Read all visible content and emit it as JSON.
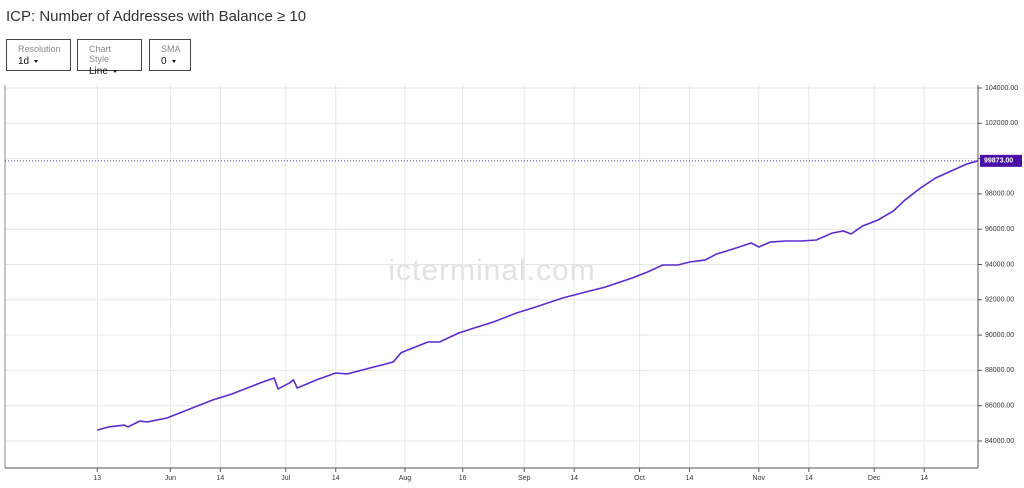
{
  "title": "ICP: Number of Addresses with Balance ≥ 10",
  "controls": [
    {
      "label": "Resolution",
      "value": "1d"
    },
    {
      "label": "Chart Style",
      "value": "Line"
    },
    {
      "label": "SMA",
      "value": "0"
    }
  ],
  "chart_data": {
    "type": "line",
    "watermark": "icterminal.com",
    "x": [
      "05-13",
      "05-16",
      "05-20",
      "05-21",
      "05-24",
      "05-26",
      "05-31",
      "06-04",
      "06-08",
      "06-12",
      "06-17",
      "06-21",
      "06-25",
      "06-28",
      "06-29",
      "07-02",
      "07-03",
      "07-04",
      "07-09",
      "07-14",
      "07-17",
      "07-23",
      "07-27",
      "07-29",
      "07-31",
      "08-03",
      "08-07",
      "08-10",
      "08-15",
      "08-19",
      "08-24",
      "08-30",
      "09-04",
      "09-11",
      "09-17",
      "09-22",
      "09-26",
      "09-29",
      "10-03",
      "10-07",
      "10-11",
      "10-14",
      "10-18",
      "10-21",
      "10-26",
      "10-30",
      "11-01",
      "11-04",
      "11-08",
      "11-12",
      "11-16",
      "11-20",
      "11-23",
      "11-25",
      "11-28",
      "12-02",
      "12-06",
      "12-09",
      "12-13",
      "12-17",
      "12-21",
      "12-25",
      "12-28"
    ],
    "series": [
      {
        "color": "#5a2bd0",
        "values": [
          84620,
          84800,
          84900,
          84800,
          85130,
          85080,
          85300,
          85640,
          85980,
          86320,
          86660,
          87000,
          87340,
          87570,
          86950,
          87290,
          87460,
          87000,
          87460,
          87850,
          87800,
          88140,
          88360,
          88480,
          89000,
          89270,
          89610,
          89610,
          90120,
          90400,
          90740,
          91250,
          91590,
          92100,
          92440,
          92720,
          93010,
          93230,
          93570,
          93970,
          93970,
          94140,
          94250,
          94590,
          94930,
          95220,
          94990,
          95270,
          95330,
          95330,
          95390,
          95780,
          95900,
          95730,
          96180,
          96520,
          97030,
          97650,
          98330,
          98900,
          99300,
          99690,
          99873
        ]
      }
    ],
    "current_value": {
      "value": 99873,
      "label": "99873.00"
    },
    "xlim": [
      "04-19",
      "12-28"
    ],
    "xticks": [
      {
        "value": "05-13",
        "label": "13"
      },
      {
        "value": "06-01",
        "label": "Jun"
      },
      {
        "value": "06-14",
        "label": "14"
      },
      {
        "value": "07-01",
        "label": "Jul"
      },
      {
        "value": "07-14",
        "label": "14"
      },
      {
        "value": "08-01",
        "label": "Aug"
      },
      {
        "value": "08-16",
        "label": "16"
      },
      {
        "value": "09-01",
        "label": "Sep"
      },
      {
        "value": "09-14",
        "label": "14"
      },
      {
        "value": "10-01",
        "label": "Oct"
      },
      {
        "value": "10-14",
        "label": "14"
      },
      {
        "value": "11-01",
        "label": "Nov"
      },
      {
        "value": "11-14",
        "label": "14"
      },
      {
        "value": "12-01",
        "label": "Dec"
      },
      {
        "value": "12-14",
        "label": "14"
      }
    ],
    "ylim": [
      82470,
      104170
    ],
    "yticks": [
      {
        "value": 84000,
        "label": "84000.00"
      },
      {
        "value": 86000,
        "label": "86000.00"
      },
      {
        "value": 88000,
        "label": "88000.00"
      },
      {
        "value": 90000,
        "label": "90000.00"
      },
      {
        "value": 92000,
        "label": "92000.00"
      },
      {
        "value": 94000,
        "label": "94000.00"
      },
      {
        "value": 96000,
        "label": "96000.00"
      },
      {
        "value": 98000,
        "label": "98000.00"
      },
      {
        "value": 100000,
        "label": "100000.00"
      },
      {
        "value": 102000,
        "label": "102000.00"
      },
      {
        "value": 104000,
        "label": "104000.00"
      }
    ],
    "grid": true
  }
}
